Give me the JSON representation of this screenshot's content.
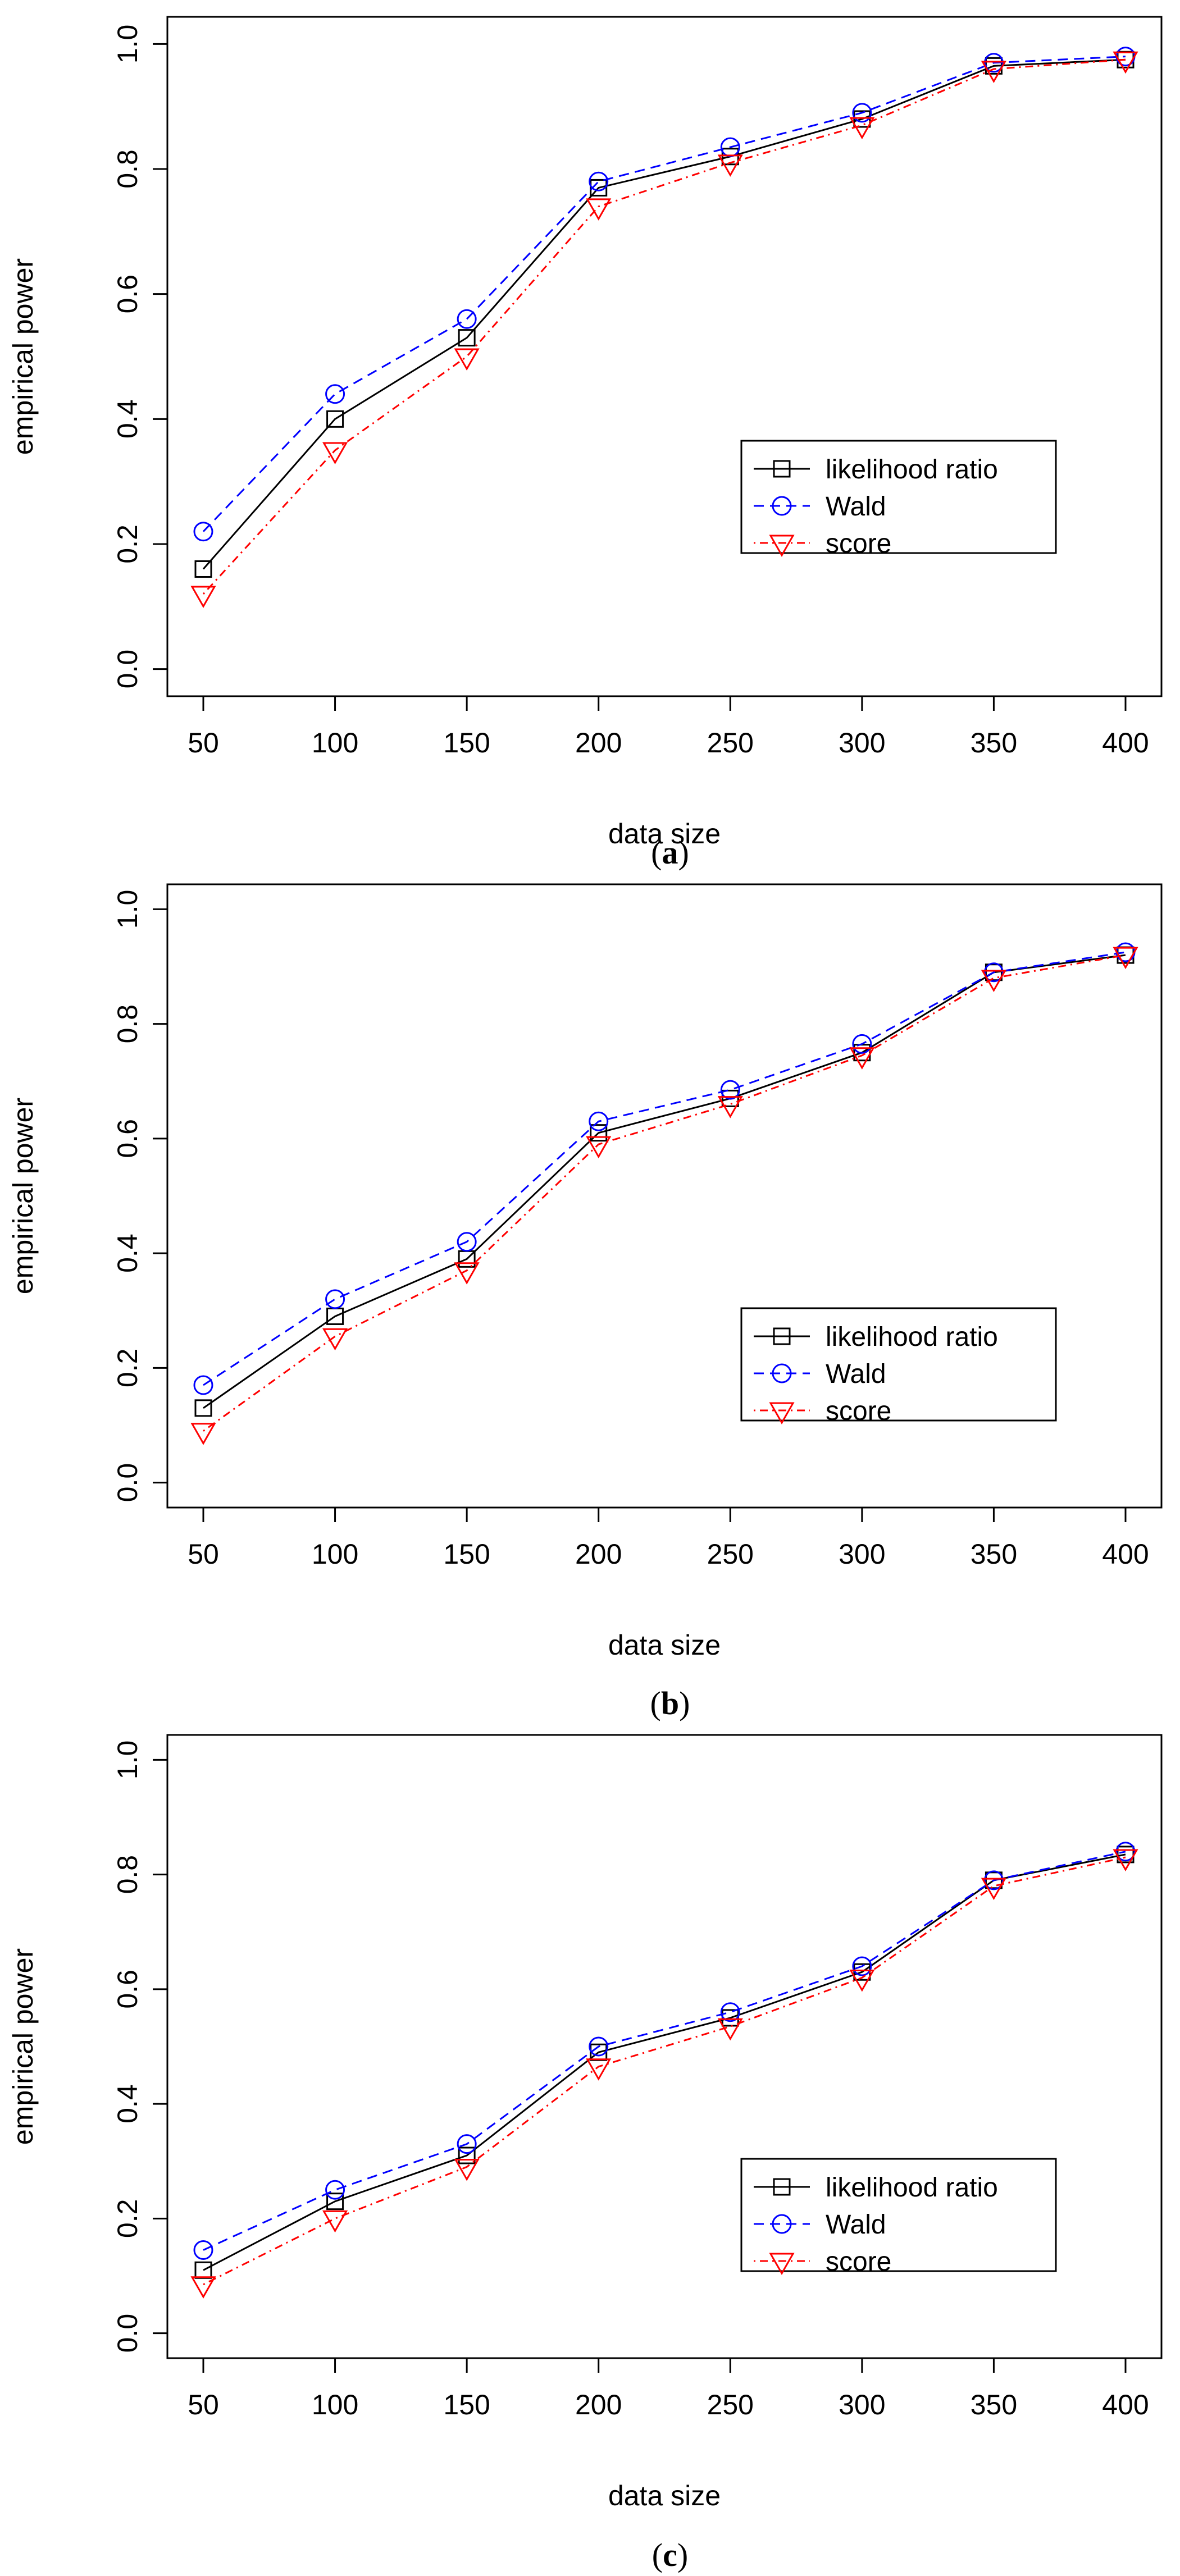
{
  "chart_data": [
    {
      "type": "line",
      "panel": "a",
      "caption": "(a)",
      "xlabel": "data size",
      "ylabel": "empirical power",
      "x": [
        50,
        100,
        150,
        200,
        250,
        300,
        350,
        400
      ],
      "xticks": [
        50,
        100,
        150,
        200,
        250,
        300,
        350,
        400
      ],
      "ylim": [
        0.0,
        1.0
      ],
      "yticks": [
        "0.0",
        "0.2",
        "0.4",
        "0.6",
        "0.8",
        "1.0"
      ],
      "legend_position": "bottom-right",
      "series": [
        {
          "name": "likelihood ratio",
          "color": "#000000",
          "marker": "square",
          "line": "solid",
          "values": [
            0.16,
            0.4,
            0.53,
            0.77,
            0.82,
            0.88,
            0.965,
            0.975
          ]
        },
        {
          "name": "Wald",
          "color": "#0000ff",
          "marker": "circle",
          "line": "dashed",
          "values": [
            0.22,
            0.44,
            0.56,
            0.78,
            0.835,
            0.89,
            0.97,
            0.98
          ]
        },
        {
          "name": "score",
          "color": "#ff0000",
          "marker": "triangle",
          "line": "dotdash",
          "values": [
            0.12,
            0.35,
            0.5,
            0.74,
            0.81,
            0.87,
            0.96,
            0.975
          ]
        }
      ]
    },
    {
      "type": "line",
      "panel": "b",
      "caption": "(b)",
      "xlabel": "data size",
      "ylabel": "empirical power",
      "x": [
        50,
        100,
        150,
        200,
        250,
        300,
        350,
        400
      ],
      "xticks": [
        50,
        100,
        150,
        200,
        250,
        300,
        350,
        400
      ],
      "ylim": [
        0.0,
        1.0
      ],
      "yticks": [
        "0.0",
        "0.2",
        "0.4",
        "0.6",
        "0.8",
        "1.0"
      ],
      "legend_position": "bottom-right",
      "series": [
        {
          "name": "likelihood ratio",
          "color": "#000000",
          "marker": "square",
          "line": "solid",
          "values": [
            0.13,
            0.29,
            0.39,
            0.61,
            0.67,
            0.75,
            0.89,
            0.92
          ]
        },
        {
          "name": "Wald",
          "color": "#0000ff",
          "marker": "circle",
          "line": "dashed",
          "values": [
            0.17,
            0.32,
            0.42,
            0.63,
            0.685,
            0.765,
            0.89,
            0.925
          ]
        },
        {
          "name": "score",
          "color": "#ff0000",
          "marker": "triangle",
          "line": "dotdash",
          "values": [
            0.09,
            0.255,
            0.37,
            0.59,
            0.66,
            0.745,
            0.88,
            0.92
          ]
        }
      ]
    },
    {
      "type": "line",
      "panel": "c",
      "caption": "(c)",
      "xlabel": "data size",
      "ylabel": "empirical power",
      "x": [
        50,
        100,
        150,
        200,
        250,
        300,
        350,
        400
      ],
      "xticks": [
        50,
        100,
        150,
        200,
        250,
        300,
        350,
        400
      ],
      "ylim": [
        0.0,
        1.0
      ],
      "yticks": [
        "0.0",
        "0.2",
        "0.4",
        "0.6",
        "0.8",
        "1.0"
      ],
      "legend_position": "bottom-right",
      "series": [
        {
          "name": "likelihood ratio",
          "color": "#000000",
          "marker": "square",
          "line": "solid",
          "values": [
            0.11,
            0.23,
            0.31,
            0.49,
            0.55,
            0.63,
            0.79,
            0.835
          ]
        },
        {
          "name": "Wald",
          "color": "#0000ff",
          "marker": "circle",
          "line": "dashed",
          "values": [
            0.145,
            0.25,
            0.33,
            0.5,
            0.56,
            0.64,
            0.79,
            0.84
          ]
        },
        {
          "name": "score",
          "color": "#ff0000",
          "marker": "triangle",
          "line": "dotdash",
          "values": [
            0.085,
            0.2,
            0.29,
            0.465,
            0.535,
            0.62,
            0.78,
            0.83
          ]
        }
      ]
    }
  ]
}
